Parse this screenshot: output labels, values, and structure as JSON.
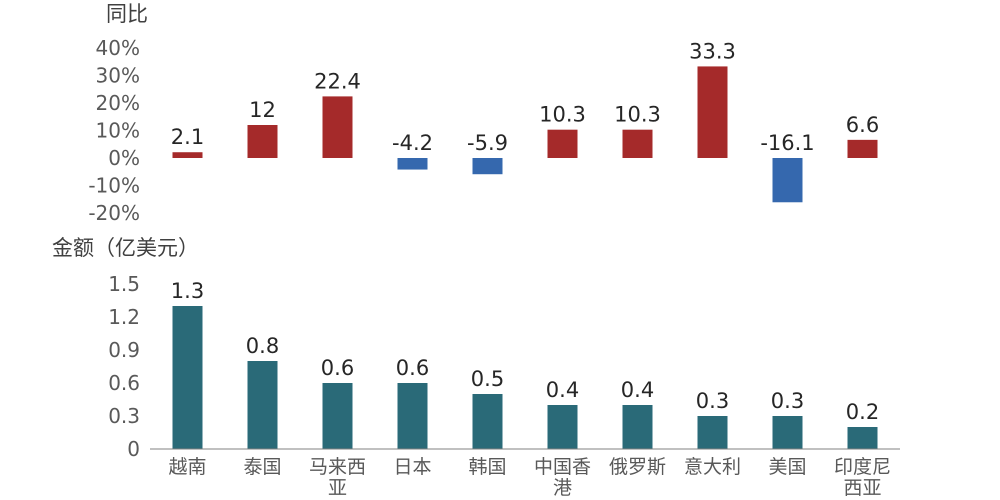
{
  "chart_data": [
    {
      "type": "bar",
      "title": "",
      "ylabel": "同比",
      "yticks": [
        "40%",
        "30%",
        "20%",
        "10%",
        "0%",
        "-10%",
        "-20%"
      ],
      "ylim": [
        -20,
        40
      ],
      "categories": [
        "越南",
        "泰国",
        "马来西亚",
        "日本",
        "韩国",
        "中国香港",
        "俄罗斯",
        "意大利",
        "美国",
        "印度尼西亚"
      ],
      "values": [
        2.1,
        12,
        22.4,
        -4.2,
        -5.9,
        10.3,
        10.3,
        33.3,
        -16.1,
        6.6
      ],
      "value_labels": [
        "2.1",
        "12",
        "22.4",
        "-4.2",
        "-5.9",
        "10.3",
        "10.3",
        "33.3",
        "-16.1",
        "6.6"
      ],
      "positive_color": "#A52A2A",
      "negative_color": "#3568AE",
      "grid": false
    },
    {
      "type": "bar",
      "title": "",
      "ylabel": "金额（亿美元）",
      "yticks": [
        "1.5",
        "1.2",
        "0.9",
        "0.6",
        "0.3",
        "0"
      ],
      "ylim": [
        0,
        1.5
      ],
      "categories": [
        "越南",
        "泰国",
        "马来西亚",
        "日本",
        "韩国",
        "中国香港",
        "俄罗斯",
        "意大利",
        "美国",
        "印度尼西亚"
      ],
      "category_label_lines": [
        [
          "越南"
        ],
        [
          "泰国"
        ],
        [
          "马来西",
          "亚"
        ],
        [
          "日本"
        ],
        [
          "韩国"
        ],
        [
          "中国香",
          "港"
        ],
        [
          "俄罗斯"
        ],
        [
          "意大利"
        ],
        [
          "美国"
        ],
        [
          "印度尼",
          "西亚"
        ]
      ],
      "values": [
        1.3,
        0.8,
        0.6,
        0.6,
        0.5,
        0.4,
        0.4,
        0.3,
        0.3,
        0.2
      ],
      "value_labels": [
        "1.3",
        "0.8",
        "0.6",
        "0.6",
        "0.5",
        "0.4",
        "0.4",
        "0.3",
        "0.3",
        "0.2"
      ],
      "color": "#2A6A78",
      "grid": false
    }
  ]
}
